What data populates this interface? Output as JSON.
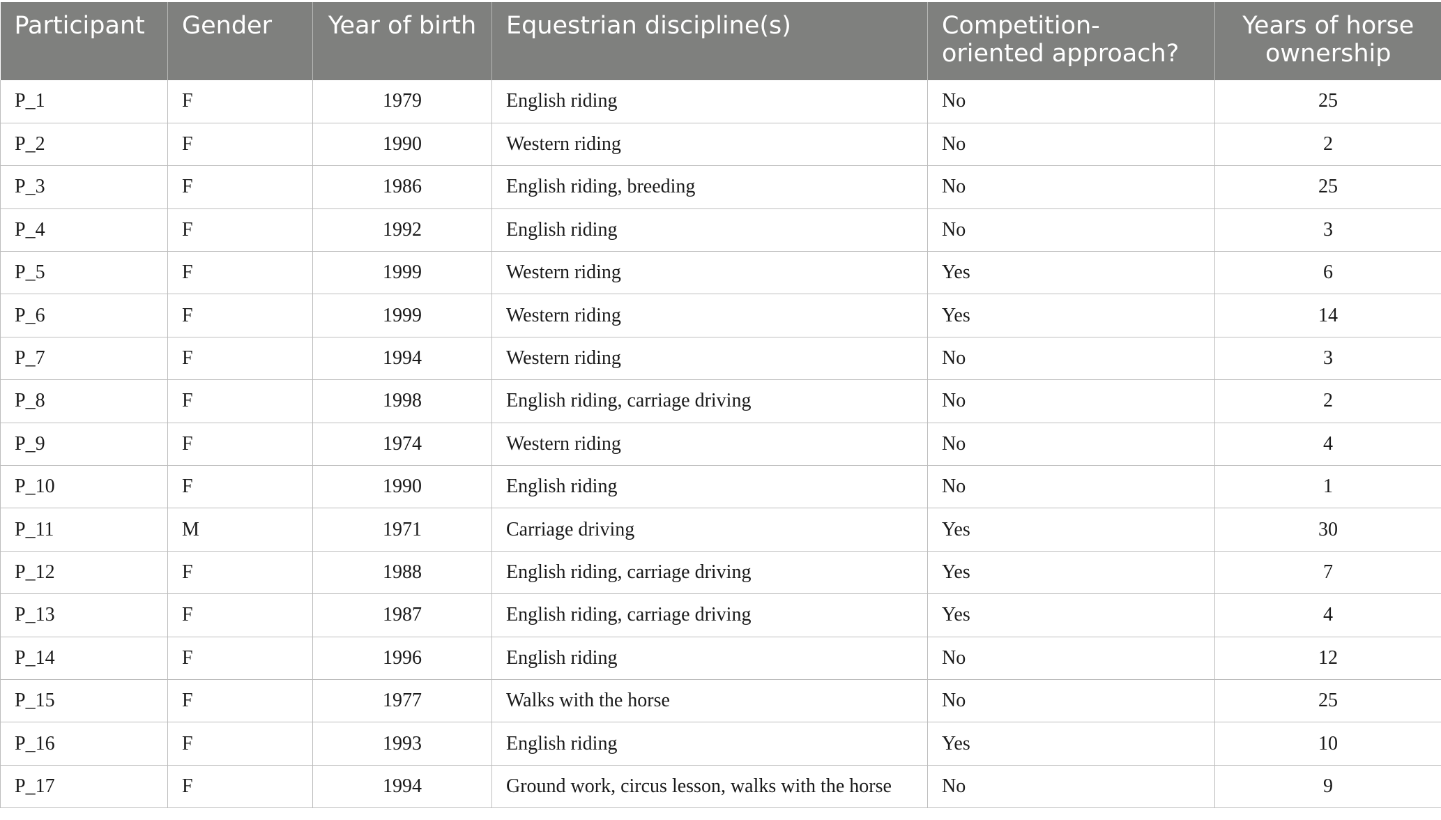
{
  "table": {
    "headers": [
      "Participant",
      "Gender",
      "Year of birth",
      "Equestrian discipline(s)",
      "Competition-oriented approach?",
      "Years of horse ownership"
    ],
    "header_lines": [
      [
        "Participant"
      ],
      [
        "Gender"
      ],
      [
        "Year of birth"
      ],
      [
        "Equestrian discipline(s)"
      ],
      [
        "Competition-",
        "oriented approach?"
      ],
      [
        "Years of horse",
        "ownership"
      ]
    ],
    "rows": [
      [
        "P_1",
        "F",
        "1979",
        "English riding",
        "No",
        "25"
      ],
      [
        "P_2",
        "F",
        "1990",
        "Western riding",
        "No",
        "2"
      ],
      [
        "P_3",
        "F",
        "1986",
        "English riding, breeding",
        "No",
        "25"
      ],
      [
        "P_4",
        "F",
        "1992",
        "English riding",
        "No",
        "3"
      ],
      [
        "P_5",
        "F",
        "1999",
        "Western riding",
        "Yes",
        "6"
      ],
      [
        "P_6",
        "F",
        "1999",
        "Western riding",
        "Yes",
        "14"
      ],
      [
        "P_7",
        "F",
        "1994",
        "Western riding",
        "No",
        "3"
      ],
      [
        "P_8",
        "F",
        "1998",
        "English riding, carriage driving",
        "No",
        "2"
      ],
      [
        "P_9",
        "F",
        "1974",
        "Western riding",
        "No",
        "4"
      ],
      [
        "P_10",
        "F",
        "1990",
        "English riding",
        "No",
        "1"
      ],
      [
        "P_11",
        "M",
        "1971",
        "Carriage driving",
        "Yes",
        "30"
      ],
      [
        "P_12",
        "F",
        "1988",
        "English riding, carriage driving",
        "Yes",
        "7"
      ],
      [
        "P_13",
        "F",
        "1987",
        "English riding, carriage driving",
        "Yes",
        "4"
      ],
      [
        "P_14",
        "F",
        "1996",
        "English riding",
        "No",
        "12"
      ],
      [
        "P_15",
        "F",
        "1977",
        "Walks with the horse",
        "No",
        "25"
      ],
      [
        "P_16",
        "F",
        "1993",
        "English riding",
        "Yes",
        "10"
      ],
      [
        "P_17",
        "F",
        "1994",
        "Ground work, circus lesson, walks with the horse",
        "No",
        "9"
      ]
    ]
  },
  "colors": {
    "header_background": "#7f807e",
    "header_text": "#ffffff",
    "cell_text": "#1a1a1a",
    "grid_line": "#bdbdbd"
  }
}
